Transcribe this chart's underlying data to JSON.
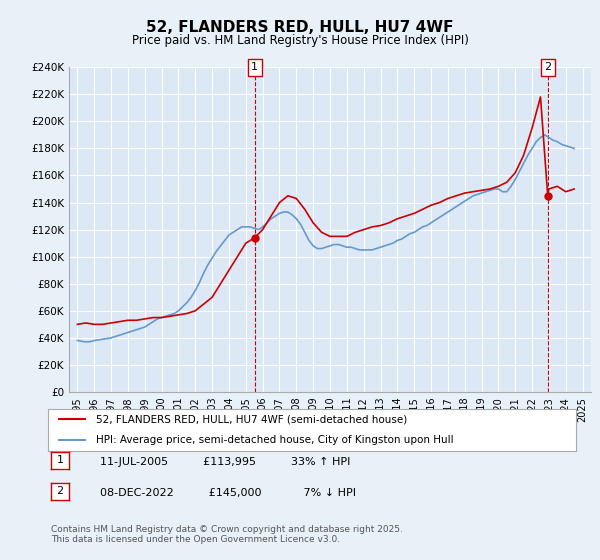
{
  "title": "52, FLANDERS RED, HULL, HU7 4WF",
  "subtitle": "Price paid vs. HM Land Registry's House Price Index (HPI)",
  "ylabel_ticks": [
    "£0",
    "£20K",
    "£40K",
    "£60K",
    "£80K",
    "£100K",
    "£120K",
    "£140K",
    "£160K",
    "£180K",
    "£200K",
    "£220K",
    "£240K"
  ],
  "ylim": [
    0,
    240000
  ],
  "xlim_start": 1995.0,
  "xlim_end": 2025.5,
  "background_color": "#e8f0f8",
  "plot_bg_color": "#dce8f5",
  "red_color": "#cc0000",
  "blue_color": "#6699cc",
  "marker1_date": "11-JUL-2005",
  "marker1_price": 113995,
  "marker1_label": "1",
  "marker1_x": 2005.53,
  "marker2_date": "08-DEC-2022",
  "marker2_price": 145000,
  "marker2_label": "2",
  "marker2_x": 2022.93,
  "legend_line1": "52, FLANDERS RED, HULL, HU7 4WF (semi-detached house)",
  "legend_line2": "HPI: Average price, semi-detached house, City of Kingston upon Hull",
  "footnote1": "1     11-JUL-2005          £113,995          33% ↑ HPI",
  "footnote2": "2     08-DEC-2022          £145,000            7% ↓ HPI",
  "copyright": "Contains HM Land Registry data © Crown copyright and database right 2025.\nThis data is licensed under the Open Government Licence v3.0.",
  "hpi_data": {
    "years": [
      1995.0,
      1995.25,
      1995.5,
      1995.75,
      1996.0,
      1996.25,
      1996.5,
      1996.75,
      1997.0,
      1997.25,
      1997.5,
      1997.75,
      1998.0,
      1998.25,
      1998.5,
      1998.75,
      1999.0,
      1999.25,
      1999.5,
      1999.75,
      2000.0,
      2000.25,
      2000.5,
      2000.75,
      2001.0,
      2001.25,
      2001.5,
      2001.75,
      2002.0,
      2002.25,
      2002.5,
      2002.75,
      2003.0,
      2003.25,
      2003.5,
      2003.75,
      2004.0,
      2004.25,
      2004.5,
      2004.75,
      2005.0,
      2005.25,
      2005.5,
      2005.75,
      2006.0,
      2006.25,
      2006.5,
      2006.75,
      2007.0,
      2007.25,
      2007.5,
      2007.75,
      2008.0,
      2008.25,
      2008.5,
      2008.75,
      2009.0,
      2009.25,
      2009.5,
      2009.75,
      2010.0,
      2010.25,
      2010.5,
      2010.75,
      2011.0,
      2011.25,
      2011.5,
      2011.75,
      2012.0,
      2012.25,
      2012.5,
      2012.75,
      2013.0,
      2013.25,
      2013.5,
      2013.75,
      2014.0,
      2014.25,
      2014.5,
      2014.75,
      2015.0,
      2015.25,
      2015.5,
      2015.75,
      2016.0,
      2016.25,
      2016.5,
      2016.75,
      2017.0,
      2017.25,
      2017.5,
      2017.75,
      2018.0,
      2018.25,
      2018.5,
      2018.75,
      2019.0,
      2019.25,
      2019.5,
      2019.75,
      2020.0,
      2020.25,
      2020.5,
      2020.75,
      2021.0,
      2021.25,
      2021.5,
      2021.75,
      2022.0,
      2022.25,
      2022.5,
      2022.75,
      2023.0,
      2023.25,
      2023.5,
      2023.75,
      2024.0,
      2024.25,
      2024.5
    ],
    "values": [
      38000,
      37500,
      37000,
      37200,
      38000,
      38500,
      39000,
      39500,
      40000,
      41000,
      42000,
      43000,
      44000,
      45000,
      46000,
      47000,
      48000,
      50000,
      52000,
      54000,
      55000,
      56000,
      57000,
      58000,
      60000,
      63000,
      66000,
      70000,
      75000,
      81000,
      88000,
      94000,
      99000,
      104000,
      108000,
      112000,
      116000,
      118000,
      120000,
      122000,
      122000,
      122000,
      121000,
      120000,
      122000,
      125000,
      128000,
      130000,
      132000,
      133000,
      133000,
      131000,
      128000,
      124000,
      118000,
      112000,
      108000,
      106000,
      106000,
      107000,
      108000,
      109000,
      109000,
      108000,
      107000,
      107000,
      106000,
      105000,
      105000,
      105000,
      105000,
      106000,
      107000,
      108000,
      109000,
      110000,
      112000,
      113000,
      115000,
      117000,
      118000,
      120000,
      122000,
      123000,
      125000,
      127000,
      129000,
      131000,
      133000,
      135000,
      137000,
      139000,
      141000,
      143000,
      145000,
      146000,
      147000,
      148000,
      149000,
      150000,
      150000,
      148000,
      148000,
      152000,
      157000,
      163000,
      169000,
      175000,
      180000,
      185000,
      188000,
      190000,
      188000,
      186000,
      185000,
      183000,
      182000,
      181000,
      180000
    ]
  },
  "property_data": {
    "years": [
      1995.0,
      1995.5,
      1996.0,
      1996.5,
      1997.0,
      1997.5,
      1998.0,
      1998.5,
      1999.0,
      1999.5,
      2000.0,
      2000.5,
      2001.0,
      2001.5,
      2002.0,
      2002.5,
      2003.0,
      2003.5,
      2004.0,
      2004.5,
      2005.0,
      2005.53,
      2006.0,
      2006.5,
      2007.0,
      2007.5,
      2008.0,
      2008.5,
      2009.0,
      2009.5,
      2010.0,
      2010.5,
      2011.0,
      2011.5,
      2012.0,
      2012.5,
      2013.0,
      2013.5,
      2014.0,
      2014.5,
      2015.0,
      2015.5,
      2016.0,
      2016.5,
      2017.0,
      2017.5,
      2018.0,
      2018.5,
      2019.0,
      2019.5,
      2020.0,
      2020.5,
      2021.0,
      2021.5,
      2022.0,
      2022.5,
      2022.93,
      2023.0,
      2023.5,
      2024.0,
      2024.5
    ],
    "values": [
      50000,
      51000,
      50000,
      50000,
      51000,
      52000,
      53000,
      53000,
      54000,
      55000,
      55000,
      56000,
      57000,
      58000,
      60000,
      65000,
      70000,
      80000,
      90000,
      100000,
      110000,
      113995,
      120000,
      130000,
      140000,
      145000,
      143000,
      135000,
      125000,
      118000,
      115000,
      115000,
      115000,
      118000,
      120000,
      122000,
      123000,
      125000,
      128000,
      130000,
      132000,
      135000,
      138000,
      140000,
      143000,
      145000,
      147000,
      148000,
      149000,
      150000,
      152000,
      155000,
      162000,
      175000,
      195000,
      218000,
      145000,
      150000,
      152000,
      148000,
      150000
    ]
  }
}
